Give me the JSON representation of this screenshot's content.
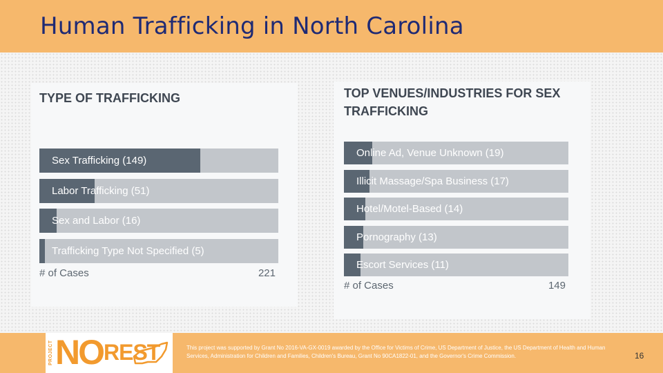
{
  "slide": {
    "title": "Human Trafficking in North Carolina",
    "page_number": "16"
  },
  "colors": {
    "header_band": "#f6b86c",
    "title_text": "#1f2a74",
    "bar_fill": "#5a6672",
    "bar_track": "#c2c6cb",
    "logo_orange": "#f29a2e"
  },
  "chart_data": [
    {
      "type": "bar",
      "orientation": "horizontal",
      "title": "TYPE OF TRAFFICKING",
      "categories": [
        "Sex Trafficking (149)",
        "Labor Trafficking (51)",
        "Sex and Labor (16)",
        "Trafficking Type Not Specified (5)"
      ],
      "values": [
        149,
        51,
        16,
        5
      ],
      "xlabel": "# of Cases",
      "xmax": 221,
      "xlim": [
        0,
        221
      ],
      "grid": false
    },
    {
      "type": "bar",
      "orientation": "horizontal",
      "title": "TOP VENUES/INDUSTRIES FOR SEX TRAFFICKING",
      "categories": [
        "Online Ad, Venue Unknown (19)",
        "Illicit Massage/Spa Business (17)",
        "Hotel/Motel-Based (14)",
        "Pornography (13)",
        "Escort Services (11)"
      ],
      "values": [
        19,
        17,
        14,
        13,
        11
      ],
      "xlabel": "# of Cases",
      "xmax": 149,
      "xlim": [
        0,
        149
      ],
      "grid": false
    }
  ],
  "footer": {
    "logo": {
      "project": "PROJECT",
      "no": "NO",
      "rest": "REST"
    },
    "acknowledgment": "This project was supported by Grant No 2016-VA-GX-0019 awarded by the Office for Victims of Crime, US Department of Justice, the US Department of Health and Human Services, Administration for Children and Families, Children's Bureau, Grant No 90CA1822-01, and the Governor's Crime Commission."
  }
}
